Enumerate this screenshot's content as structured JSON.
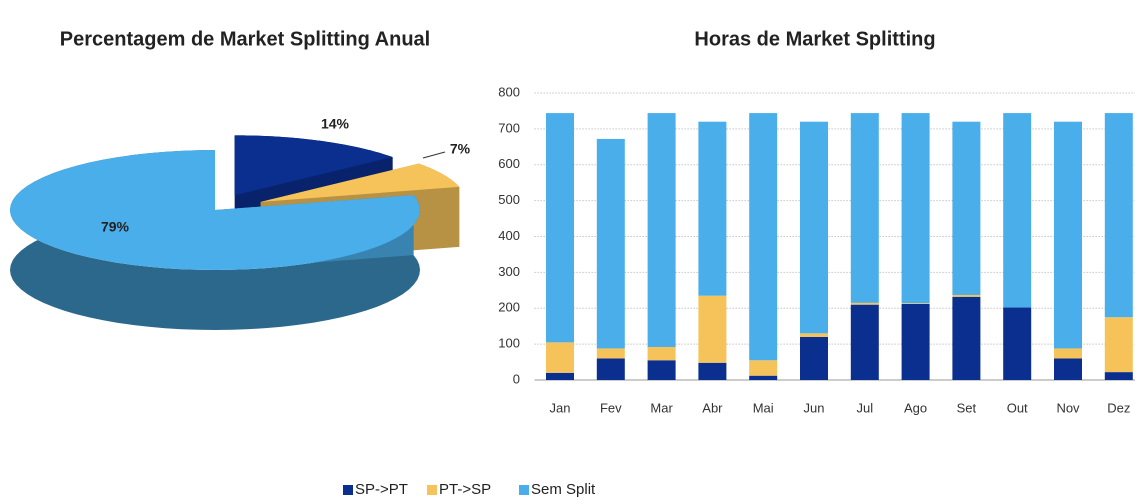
{
  "chart_data": [
    {
      "type": "pie3d",
      "title": "Percentagem de Market Splitting Anual",
      "categories": [
        "SP->PT",
        "PT->SP",
        "Sem Split"
      ],
      "values": [
        14,
        7,
        79
      ],
      "value_labels": [
        "14%",
        "7%",
        "79%"
      ],
      "colors": [
        "#0a2f8f",
        "#f5c35a",
        "#4aaeea"
      ]
    },
    {
      "type": "stacked_bar",
      "title": "Horas de Market Splitting",
      "categories": [
        "Jan",
        "Fev",
        "Mar",
        "Abr",
        "Mai",
        "Jun",
        "Jul",
        "Ago",
        "Set",
        "Out",
        "Nov",
        "Dez"
      ],
      "series": [
        {
          "name": "SP->PT",
          "color": "#0a2f8f",
          "values": [
            20,
            60,
            55,
            48,
            12,
            120,
            210,
            212,
            232,
            202,
            60,
            22
          ]
        },
        {
          "name": "PT->SP",
          "color": "#f5c35a",
          "values": [
            85,
            28,
            37,
            187,
            43,
            10,
            5,
            2,
            5,
            0,
            28,
            153
          ]
        },
        {
          "name": "Sem Split",
          "color": "#4aaeea",
          "values": [
            639,
            584,
            652,
            485,
            689,
            590,
            529,
            530,
            483,
            542,
            632,
            569
          ]
        }
      ],
      "ylim": [
        0,
        800
      ],
      "yticks": [
        0,
        100,
        200,
        300,
        400,
        500,
        600,
        700,
        800
      ],
      "grid": true,
      "legend": "bottom"
    }
  ]
}
